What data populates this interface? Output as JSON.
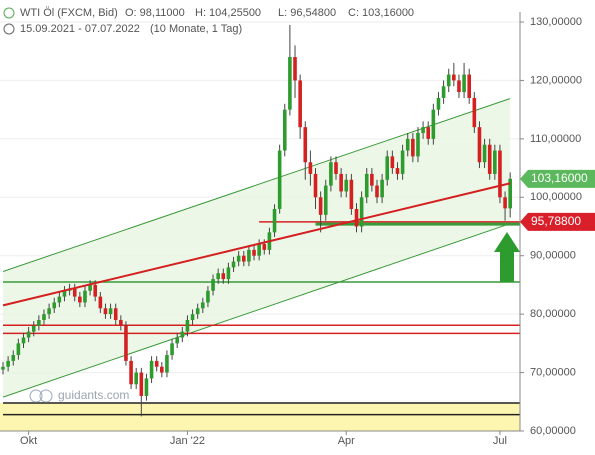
{
  "chart_data": {
    "type": "candlestick",
    "title": "WTI Öl (FXCM, Bid)",
    "ohlc_labels": [
      "O: 98,11000",
      "H: 104,25500",
      "L: 96,54800",
      "C: 103,16000"
    ],
    "subtitle": "15.09.2021 - 07.07.2022",
    "period": "(10 Monate, 1 Tag)",
    "watermark": "guidants.com",
    "ylim": [
      60,
      130
    ],
    "yticks": [
      {
        "value": 60,
        "label": "60,00000"
      },
      {
        "value": 70,
        "label": "70,00000"
      },
      {
        "value": 80,
        "label": "80,00000"
      },
      {
        "value": 90,
        "label": "90,00000"
      },
      {
        "value": 100,
        "label": "100,00000"
      },
      {
        "value": 110,
        "label": "110,00000"
      },
      {
        "value": 120,
        "label": "120,00000"
      },
      {
        "value": 130,
        "label": "130,00000"
      }
    ],
    "grid": true,
    "categories": [
      null,
      null,
      null,
      null,
      null,
      "Okt",
      null,
      null,
      null,
      null,
      null,
      null,
      null,
      null,
      null,
      null,
      null,
      null,
      null,
      null,
      null,
      null,
      null,
      null,
      null,
      null,
      null,
      null,
      null,
      null,
      null,
      null,
      null,
      null,
      null,
      null,
      "Jan '22",
      null,
      null,
      null,
      null,
      null,
      null,
      null,
      null,
      null,
      null,
      null,
      null,
      null,
      null,
      null,
      null,
      null,
      null,
      null,
      null,
      null,
      null,
      null,
      null,
      null,
      null,
      null,
      null,
      null,
      null,
      "Apr",
      null,
      null,
      null,
      null,
      null,
      null,
      null,
      null,
      null,
      null,
      null,
      null,
      null,
      null,
      null,
      null,
      null,
      null,
      null,
      null,
      null,
      null,
      null,
      null,
      null,
      null,
      null,
      null,
      null,
      "Jul",
      null,
      null
    ],
    "up_color": "#2e9b2e",
    "down_color": "#d42020",
    "ohlc": [
      [
        70.5,
        71.8,
        69.7,
        71
      ],
      [
        71,
        72.8,
        70.2,
        72
      ],
      [
        72,
        73.8,
        71.2,
        73
      ],
      [
        73,
        75.8,
        72.2,
        75
      ],
      [
        75,
        76.8,
        74.2,
        76
      ],
      [
        76,
        77.8,
        75.2,
        77
      ],
      [
        77,
        78.8,
        76.2,
        78
      ],
      [
        78,
        79.8,
        77.2,
        79
      ],
      [
        79,
        80.8,
        78.2,
        80
      ],
      [
        80,
        81.8,
        79.2,
        81
      ],
      [
        81,
        82.8,
        80.2,
        82
      ],
      [
        82,
        83.8,
        81.2,
        83
      ],
      [
        83,
        84.8,
        82.2,
        84
      ],
      [
        84,
        85.2,
        83.2,
        84.4
      ],
      [
        84.4,
        85.2,
        82.2,
        83
      ],
      [
        83,
        83.8,
        81.2,
        82
      ],
      [
        82,
        84.8,
        81.2,
        84
      ],
      [
        84,
        85.8,
        83.2,
        85
      ],
      [
        85,
        85.8,
        82.2,
        83
      ],
      [
        83,
        83.8,
        80.2,
        81
      ],
      [
        81,
        81.8,
        79.2,
        80
      ],
      [
        80,
        81.8,
        79.2,
        81
      ],
      [
        81,
        81.8,
        78.2,
        79
      ],
      [
        79,
        79.8,
        77.2,
        78
      ],
      [
        78,
        78.8,
        71.2,
        72
      ],
      [
        72,
        72.8,
        67.2,
        68
      ],
      [
        68,
        70.8,
        67.2,
        70
      ],
      [
        70,
        70.8,
        62.5,
        66
      ],
      [
        66,
        69.8,
        65.2,
        69
      ],
      [
        69,
        72.8,
        68.2,
        72
      ],
      [
        72,
        72.8,
        70.2,
        71
      ],
      [
        71,
        71.8,
        69.2,
        70
      ],
      [
        70,
        73.8,
        69.2,
        73
      ],
      [
        73,
        75.8,
        72.2,
        75
      ],
      [
        75,
        76.8,
        74.2,
        76
      ],
      [
        76,
        77.8,
        75.2,
        77
      ],
      [
        77,
        79.8,
        76.2,
        79
      ],
      [
        79,
        80.8,
        78.2,
        80
      ],
      [
        80,
        81.8,
        79.2,
        81
      ],
      [
        81,
        82.8,
        80.2,
        82
      ],
      [
        82,
        84.8,
        81.2,
        84
      ],
      [
        84,
        86.8,
        83.2,
        86
      ],
      [
        86,
        87.8,
        85.2,
        87
      ],
      [
        87,
        87.8,
        85.2,
        86
      ],
      [
        86,
        88.8,
        85.2,
        88
      ],
      [
        88,
        89.8,
        87.2,
        89
      ],
      [
        89,
        90.8,
        88.2,
        90
      ],
      [
        90,
        90.8,
        88.2,
        89
      ],
      [
        89,
        91.8,
        88.2,
        91
      ],
      [
        91,
        91.8,
        89.2,
        90
      ],
      [
        90,
        92.8,
        89.2,
        92
      ],
      [
        92,
        92.8,
        90.2,
        91
      ],
      [
        91,
        94.8,
        90.2,
        94
      ],
      [
        94,
        98.8,
        93.2,
        98
      ],
      [
        98,
        109,
        97.2,
        108
      ],
      [
        108,
        116,
        107,
        115
      ],
      [
        115,
        129.5,
        114,
        124
      ],
      [
        124,
        126,
        117,
        120
      ],
      [
        120,
        121,
        110,
        112
      ],
      [
        112,
        113,
        103,
        106
      ],
      [
        106,
        108,
        102,
        104
      ],
      [
        104,
        105,
        98,
        100
      ],
      [
        100,
        101,
        94,
        97
      ],
      [
        97,
        103,
        96,
        102
      ],
      [
        102,
        107,
        101,
        106
      ],
      [
        106,
        107,
        103,
        104
      ],
      [
        104,
        105,
        100,
        101
      ],
      [
        101,
        104,
        100,
        103
      ],
      [
        103,
        104,
        97,
        98
      ],
      [
        98,
        99,
        94,
        95
      ],
      [
        95,
        101,
        94,
        100
      ],
      [
        100,
        105,
        99,
        104
      ],
      [
        104,
        105,
        101,
        102
      ],
      [
        102,
        103,
        99,
        100
      ],
      [
        100,
        104,
        99,
        103
      ],
      [
        103,
        108,
        102,
        107
      ],
      [
        107,
        108,
        104,
        105
      ],
      [
        105,
        106,
        103,
        104
      ],
      [
        104,
        109,
        103,
        108
      ],
      [
        108,
        111,
        107,
        110
      ],
      [
        110,
        111,
        106,
        107
      ],
      [
        107,
        112,
        106,
        111
      ],
      [
        111,
        113,
        110,
        112
      ],
      [
        112,
        113,
        109,
        110
      ],
      [
        110,
        116,
        109,
        115
      ],
      [
        115,
        118,
        114,
        117
      ],
      [
        117,
        120,
        116,
        119
      ],
      [
        119,
        122,
        118,
        121
      ],
      [
        121,
        123,
        119,
        120
      ],
      [
        120,
        121,
        117,
        118
      ],
      [
        118,
        123,
        117,
        121
      ],
      [
        121,
        122,
        116,
        117
      ],
      [
        117,
        118,
        111,
        112
      ],
      [
        112,
        113,
        105,
        106
      ],
      [
        106,
        110,
        105,
        109
      ],
      [
        109,
        110,
        103,
        104
      ],
      [
        104,
        109,
        103,
        108
      ],
      [
        108,
        109,
        99,
        100
      ],
      [
        100,
        101,
        96,
        98.11
      ],
      [
        98.11,
        104.255,
        96.548,
        103.16
      ]
    ],
    "channel": {
      "color": "#3a9a3a",
      "fill": "#e9f5e1",
      "upper": [
        87.3,
        116.9
      ],
      "lower": [
        65.8,
        95.5
      ]
    },
    "trend_line": {
      "color": "#d42020",
      "values": [
        81.5,
        102.4
      ]
    },
    "levels": [
      {
        "value": 95.788,
        "color": "#d42020",
        "from": 50
      },
      {
        "value": 95.4,
        "color": "#3a9a3a",
        "from": 61
      },
      {
        "value": 85.5,
        "color": "#3a9a3a",
        "from": 0
      },
      {
        "value": 78.1,
        "color": "#d42020",
        "from": 0
      },
      {
        "value": 76.7,
        "color": "#d42020",
        "from": 0
      },
      {
        "value": 64.8,
        "color": "#222222",
        "from": 0
      },
      {
        "value": 62.8,
        "color": "#222222",
        "from": 0
      }
    ],
    "zone": {
      "values": [
        60,
        64.8
      ],
      "color": "#fdf6b0"
    },
    "price_tags": [
      {
        "value": 103.16,
        "label": "103,16000",
        "color": "#5cb85c"
      },
      {
        "value": 95.788,
        "label": "95,78800",
        "color": "#d9202a"
      }
    ]
  }
}
